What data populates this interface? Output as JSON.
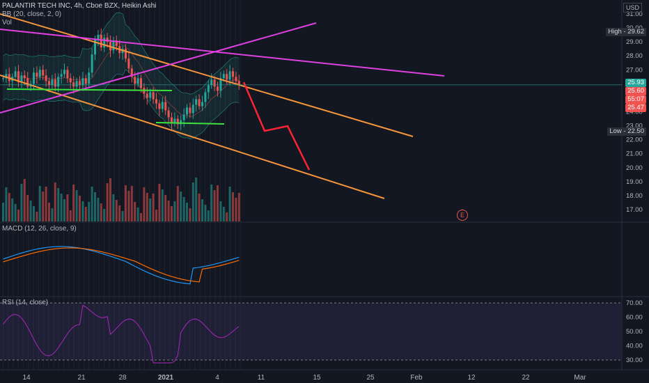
{
  "header": {
    "symbol_line": "PALANTIR TECH INC, 4h, Cboe BZX, Heikin Ashi",
    "bb_line": "BB (20, close, 2, 0)",
    "vol_line": "Vol",
    "currency": "USD"
  },
  "panes": {
    "macd_label": "MACD (12, 26, close, 9)",
    "rsi_label": "RSI (14, close)"
  },
  "price_axis": {
    "ticks": [
      "31.00",
      "30.00",
      "29.00",
      "28.00",
      "27.00",
      "26.00",
      "25.00",
      "24.00",
      "23.00",
      "22.00",
      "21.00",
      "20.00",
      "19.00",
      "18.00",
      "17.00"
    ],
    "high_label": "High - 29.62",
    "low_label": "Low - 22.50",
    "last_price": "25.93",
    "tag_2560": "25.60",
    "countdown": "55:07",
    "tag_2547": "25.47"
  },
  "rsi_axis": {
    "ticks": [
      "70.00",
      "60.00",
      "50.00",
      "40.00",
      "30.00"
    ]
  },
  "time_axis": {
    "ticks": [
      "14",
      "21",
      "28",
      "2021",
      "4",
      "11",
      "15",
      "25",
      "Feb",
      "12",
      "22",
      "Mar"
    ]
  },
  "markers": {
    "earnings": "E"
  },
  "colors": {
    "background": "#131722",
    "candle_up": "#26a69a",
    "candle_down": "#ef5350",
    "orange_lines": "#f7953b",
    "magenta_lines": "#e040e0",
    "green_lines": "#3de33d",
    "red_path": "#ff2233",
    "macd_line": "#2196f3",
    "signal_line": "#ff6d00",
    "rsi_line": "#9c27b0"
  },
  "chart_data": {
    "type": "candlestick",
    "candle_closes": [
      26.4,
      26.7,
      26.2,
      26.5,
      26.9,
      26.1,
      26.6,
      26.4,
      25.8,
      26.0,
      26.8,
      26.5,
      27.0,
      26.6,
      26.2,
      25.9,
      26.3,
      25.8,
      26.5,
      26.7,
      27.0,
      26.4,
      26.1,
      25.8,
      26.2,
      25.9,
      26.4,
      26.0,
      26.8,
      28.1,
      29.2,
      29.5,
      28.6,
      29.3,
      29.0,
      28.4,
      29.1,
      28.7,
      28.2,
      28.5,
      27.8,
      27.1,
      26.5,
      26.0,
      26.4,
      25.7,
      25.3,
      25.0,
      25.4,
      24.9,
      24.6,
      24.2,
      24.7,
      24.1,
      23.6,
      23.2,
      23.5,
      23.1,
      23.4,
      23.8,
      24.3,
      23.9,
      24.5,
      24.9,
      24.4,
      24.7,
      25.4,
      25.9,
      26.3,
      25.8,
      25.5,
      26.4,
      26.7,
      26.3,
      26.9,
      26.5,
      26.2,
      25.9
    ]
  }
}
